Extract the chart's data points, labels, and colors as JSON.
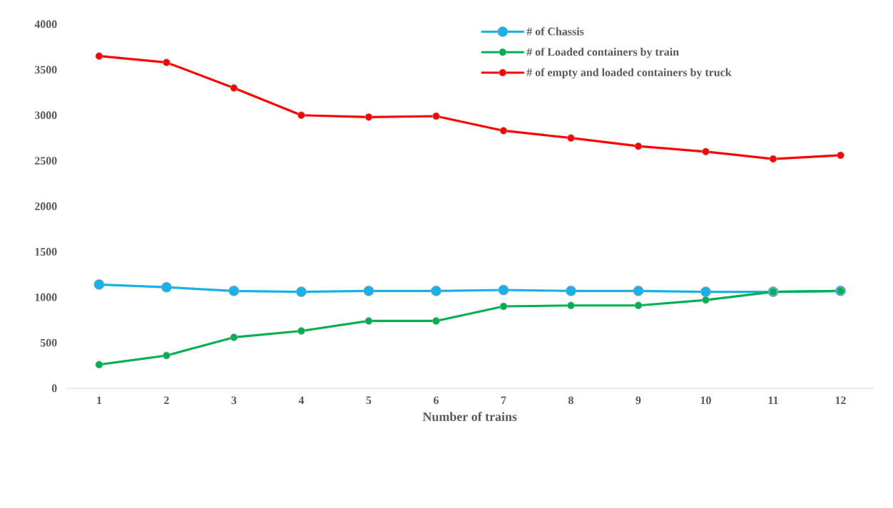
{
  "chart_data": {
    "type": "line",
    "xlabel": "Number of trains",
    "categories": [
      "1",
      "2",
      "3",
      "4",
      "5",
      "6",
      "7",
      "8",
      "9",
      "10",
      "11",
      "12"
    ],
    "series": [
      {
        "name": "# of Chassis",
        "color": "#1ab0e8",
        "values": [
          1140,
          1110,
          1070,
          1060,
          1070,
          1070,
          1080,
          1070,
          1070,
          1060,
          1060,
          1070
        ]
      },
      {
        "name": "# of Loaded containers by train",
        "color": "#00b050",
        "values": [
          260,
          360,
          560,
          630,
          740,
          740,
          900,
          910,
          910,
          970,
          1060,
          1070
        ]
      },
      {
        "name": "# of empty and loaded containers by truck",
        "color": "#ff0000",
        "values": [
          3650,
          3580,
          3300,
          3000,
          2980,
          2990,
          2830,
          2750,
          2660,
          2600,
          2520,
          2560
        ]
      }
    ],
    "ylim": [
      0,
      4000
    ],
    "yticks": [
      0,
      500,
      1000,
      1500,
      2000,
      2500,
      3000,
      3500,
      4000
    ],
    "grid": false,
    "legend": "top right",
    "marker": "circle",
    "line_style": "solid"
  }
}
